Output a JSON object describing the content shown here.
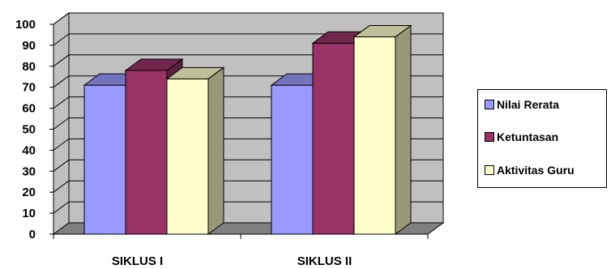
{
  "chart_data": {
    "type": "bar",
    "categories": [
      "SIKLUS I",
      "SIKLUS II"
    ],
    "series": [
      {
        "name": "Nilai Rerata",
        "values": [
          71,
          71
        ],
        "color": "#9999ff"
      },
      {
        "name": "Ketuntasan",
        "values": [
          78,
          91
        ],
        "color": "#993366"
      },
      {
        "name": "Aktivitas Guru",
        "values": [
          74,
          94
        ],
        "color": "#ffffcc"
      }
    ],
    "ylim": [
      0,
      100
    ],
    "yticks": [
      0,
      10,
      20,
      30,
      40,
      50,
      60,
      70,
      80,
      90,
      100
    ],
    "title": "",
    "xlabel": "",
    "ylabel": "",
    "grid": true,
    "legend_position": "right",
    "three_d": true,
    "wall_color": "#c0c0c0",
    "floor_color": "#808080"
  }
}
